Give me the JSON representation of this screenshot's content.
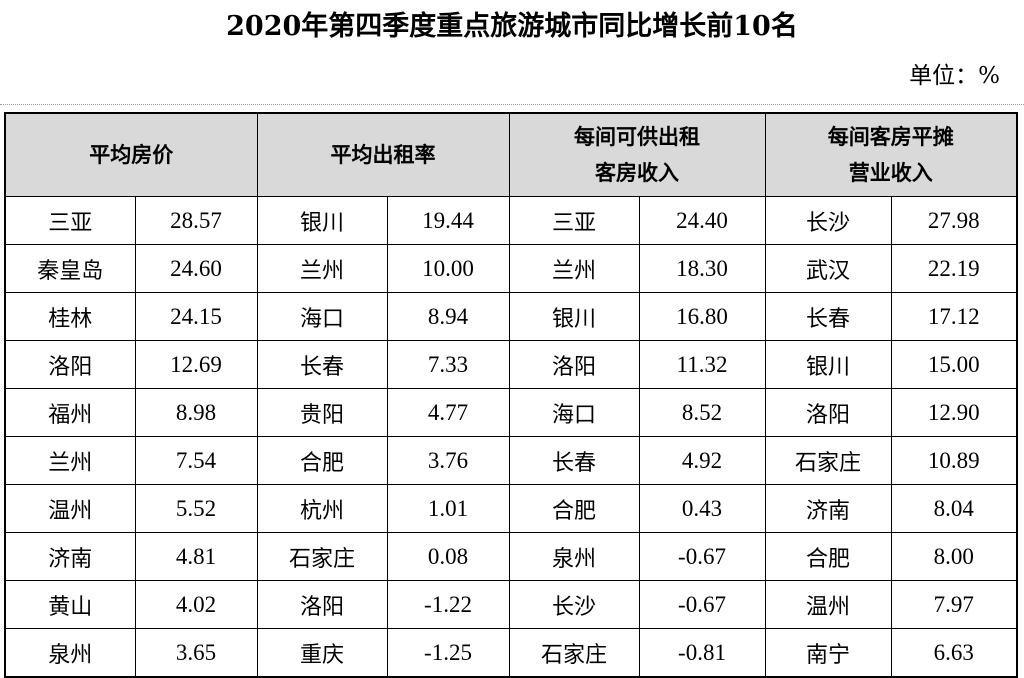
{
  "title": "2020年第四季度重点旅游城市同比增长前10名",
  "unit": "单位：%",
  "headers": [
    {
      "line1": "平均房价",
      "line2": ""
    },
    {
      "line1": "平均出租率",
      "line2": ""
    },
    {
      "line1": "每间可供出租",
      "line2": "客房收入"
    },
    {
      "line1": "每间客房平摊",
      "line2": "营业收入"
    }
  ],
  "rows": [
    {
      "c1": "三亚",
      "v1": "28.57",
      "c2": "银川",
      "v2": "19.44",
      "c3": "三亚",
      "v3": "24.40",
      "c4": "长沙",
      "v4": "27.98"
    },
    {
      "c1": "秦皇岛",
      "v1": "24.60",
      "c2": "兰州",
      "v2": "10.00",
      "c3": "兰州",
      "v3": "18.30",
      "c4": "武汉",
      "v4": "22.19"
    },
    {
      "c1": "桂林",
      "v1": "24.15",
      "c2": "海口",
      "v2": "8.94",
      "c3": "银川",
      "v3": "16.80",
      "c4": "长春",
      "v4": "17.12"
    },
    {
      "c1": "洛阳",
      "v1": "12.69",
      "c2": "长春",
      "v2": "7.33",
      "c3": "洛阳",
      "v3": "11.32",
      "c4": "银川",
      "v4": "15.00"
    },
    {
      "c1": "福州",
      "v1": "8.98",
      "c2": "贵阳",
      "v2": "4.77",
      "c3": "海口",
      "v3": "8.52",
      "c4": "洛阳",
      "v4": "12.90"
    },
    {
      "c1": "兰州",
      "v1": "7.54",
      "c2": "合肥",
      "v2": "3.76",
      "c3": "长春",
      "v3": "4.92",
      "c4": "石家庄",
      "v4": "10.89"
    },
    {
      "c1": "温州",
      "v1": "5.52",
      "c2": "杭州",
      "v2": "1.01",
      "c3": "合肥",
      "v3": "0.43",
      "c4": "济南",
      "v4": "8.04"
    },
    {
      "c1": "济南",
      "v1": "4.81",
      "c2": "石家庄",
      "v2": "0.08",
      "c3": "泉州",
      "v3": "-0.67",
      "c4": "合肥",
      "v4": "8.00"
    },
    {
      "c1": "黄山",
      "v1": "4.02",
      "c2": "洛阳",
      "v2": "-1.22",
      "c3": "长沙",
      "v3": "-0.67",
      "c4": "温州",
      "v4": "7.97"
    },
    {
      "c1": "泉州",
      "v1": "3.65",
      "c2": "重庆",
      "v2": "-1.25",
      "c3": "石家庄",
      "v3": "-0.81",
      "c4": "南宁",
      "v4": "6.63"
    }
  ]
}
